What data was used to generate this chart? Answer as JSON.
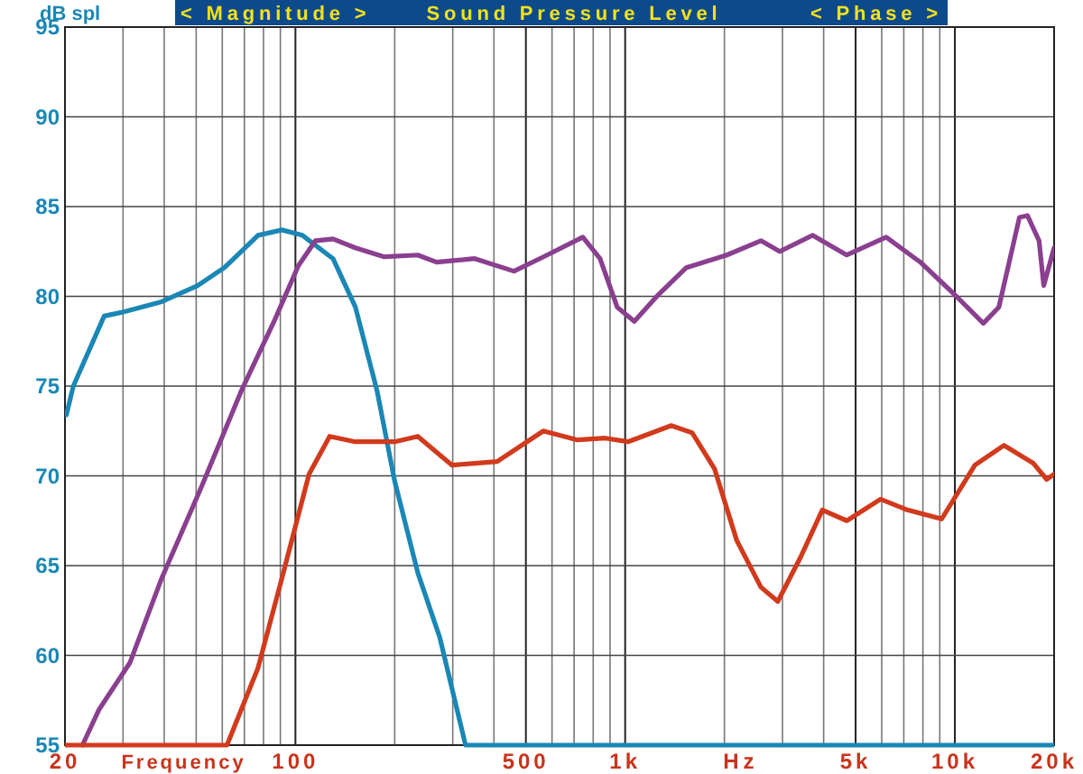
{
  "chart_data": {
    "type": "line",
    "title": "Sound Pressure Level",
    "xlabel": "Frequency",
    "ylabel": "dB spl",
    "annotations": [
      "< Magnitude >",
      "< Phase >",
      "Hz"
    ],
    "log": "x",
    "grid": true,
    "line_style": "solid",
    "xlim": [
      20,
      20000
    ],
    "ylim": [
      55,
      95
    ],
    "xticks": [
      {
        "value": 20,
        "label": "20"
      },
      {
        "value": 30,
        "label": null
      },
      {
        "value": 40,
        "label": null
      },
      {
        "value": 50,
        "label": null
      },
      {
        "value": 60,
        "label": null
      },
      {
        "value": 70,
        "label": null
      },
      {
        "value": 80,
        "label": null
      },
      {
        "value": 90,
        "label": null
      },
      {
        "value": 100,
        "label": "100"
      },
      {
        "value": 200,
        "label": null
      },
      {
        "value": 300,
        "label": null
      },
      {
        "value": 400,
        "label": null
      },
      {
        "value": 500,
        "label": "500"
      },
      {
        "value": 600,
        "label": null
      },
      {
        "value": 700,
        "label": null
      },
      {
        "value": 800,
        "label": null
      },
      {
        "value": 900,
        "label": null
      },
      {
        "value": 1000,
        "label": "1k"
      },
      {
        "value": 2000,
        "label": null
      },
      {
        "value": 3000,
        "label": null
      },
      {
        "value": 4000,
        "label": null
      },
      {
        "value": 5000,
        "label": "5k"
      },
      {
        "value": 6000,
        "label": null
      },
      {
        "value": 7000,
        "label": null
      },
      {
        "value": 8000,
        "label": null
      },
      {
        "value": 9000,
        "label": null
      },
      {
        "value": 10000,
        "label": "10k"
      },
      {
        "value": 20000,
        "label": "20k"
      }
    ],
    "yticks": [
      55,
      60,
      65,
      70,
      75,
      80,
      85,
      90,
      95
    ],
    "series": [
      {
        "color": "#1a87b5",
        "x": [
          20.2,
          21.2,
          26.3,
          29.6,
          39.3,
          50.5,
          60.9,
          77,
          91,
          105,
          130,
          152,
          177,
          200,
          235,
          274,
          328,
          20000
        ],
        "values": [
          73.4,
          75.0,
          78.9,
          79.1,
          79.7,
          80.6,
          81.6,
          83.4,
          83.7,
          83.4,
          82.1,
          79.4,
          74.7,
          69.7,
          64.6,
          61.0,
          55,
          55
        ]
      },
      {
        "color": "#8a3f8f",
        "x": [
          22.6,
          25.4,
          31.5,
          39.3,
          51.9,
          68.4,
          86.6,
          102,
          115,
          130,
          152,
          186,
          235,
          268,
          350,
          460,
          565,
          744,
          839,
          946,
          1066,
          1262,
          1533,
          2033,
          2581,
          2944,
          3700,
          4701,
          6190,
          7860,
          9980,
          12200,
          13600,
          15700,
          16600,
          18000,
          18600,
          20000
        ],
        "values": [
          55,
          57.0,
          59.6,
          64.3,
          69.4,
          74.7,
          78.7,
          81.7,
          83.1,
          83.2,
          82.7,
          82.2,
          82.3,
          81.9,
          82.1,
          81.4,
          82.2,
          83.3,
          82.1,
          79.4,
          78.6,
          80.1,
          81.6,
          82.3,
          83.1,
          82.5,
          83.4,
          82.3,
          83.3,
          81.9,
          80.1,
          78.5,
          79.4,
          84.4,
          84.5,
          83.1,
          80.6,
          82.7
        ]
      },
      {
        "color": "#d13a1c",
        "x": [
          20,
          62,
          77,
          91,
          110,
          127,
          152,
          200,
          235,
          298,
          350,
          409,
          565,
          717,
          870,
          1020,
          1380,
          1596,
          1866,
          2180,
          2581,
          2904,
          3390,
          3963,
          4701,
          5950,
          7190,
          9120,
          11500,
          14100,
          17300,
          19000,
          20000
        ],
        "values": [
          55,
          55,
          59.3,
          64.3,
          70.1,
          72.2,
          71.9,
          71.9,
          72.2,
          70.6,
          70.7,
          70.8,
          72.5,
          72.0,
          72.1,
          71.9,
          72.8,
          72.4,
          70.4,
          66.4,
          63.8,
          63.0,
          65.4,
          68.1,
          67.5,
          68.7,
          68.1,
          67.6,
          70.6,
          71.7,
          70.7,
          69.8,
          70.1
        ]
      }
    ]
  }
}
